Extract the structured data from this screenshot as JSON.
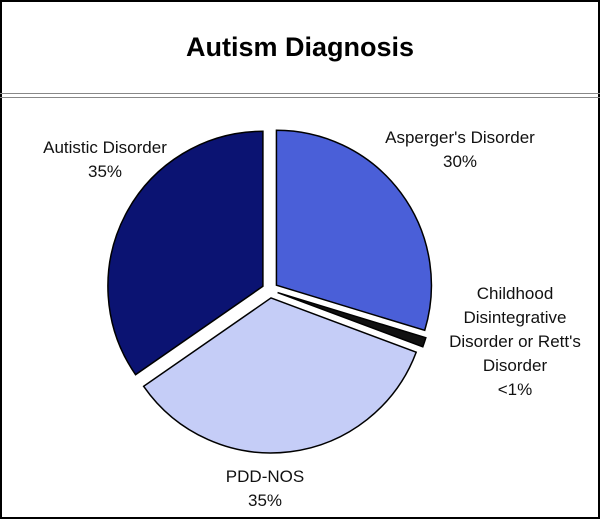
{
  "chart_data": {
    "type": "pie",
    "title": "Autism Diagnosis",
    "categories": [
      "Asperger's Disorder",
      "Childhood Disintegrative Disorder or Rett's Disorder",
      "PDD-NOS",
      "Autistic Disorder"
    ],
    "values": [
      30,
      1,
      35,
      35
    ],
    "value_labels": [
      "30%",
      "<1%",
      "35%",
      "35%"
    ],
    "colors": [
      "#4a5fd8",
      "#111111",
      "#c5cdf7",
      "#0b1372"
    ]
  }
}
